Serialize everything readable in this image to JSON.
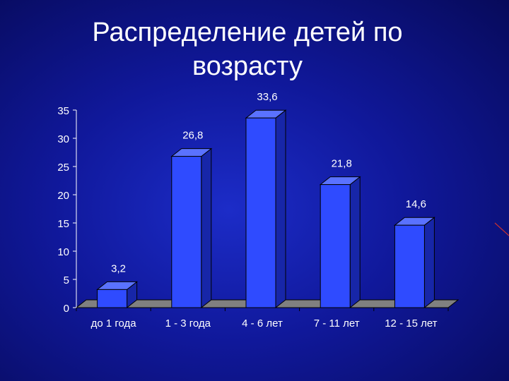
{
  "title_line1": "Распределение детей по",
  "title_line2": "возрасту",
  "chart_data": {
    "type": "bar",
    "title": "Распределение детей по возрасту",
    "categories": [
      "до 1 года",
      "1 - 3 года",
      "4 - 6 лет",
      "7 - 11 лет",
      "12 - 15 лет"
    ],
    "values": [
      3.2,
      26.8,
      33.6,
      21.8,
      14.6
    ],
    "value_labels": [
      "3,2",
      "26,8",
      "33,6",
      "21,8",
      "14,6"
    ],
    "y_ticks": [
      "0",
      "5",
      "10",
      "15",
      "20",
      "25",
      "30",
      "35"
    ],
    "ylim": [
      0,
      35
    ],
    "xlabel": "",
    "ylabel": "",
    "grid": false,
    "style": "3d-column",
    "colors": {
      "bar_front": "#2f4bff",
      "bar_side": "#1726a8",
      "bar_top": "#5a72ff",
      "floor": "#808080",
      "text": "#ffffff"
    }
  }
}
